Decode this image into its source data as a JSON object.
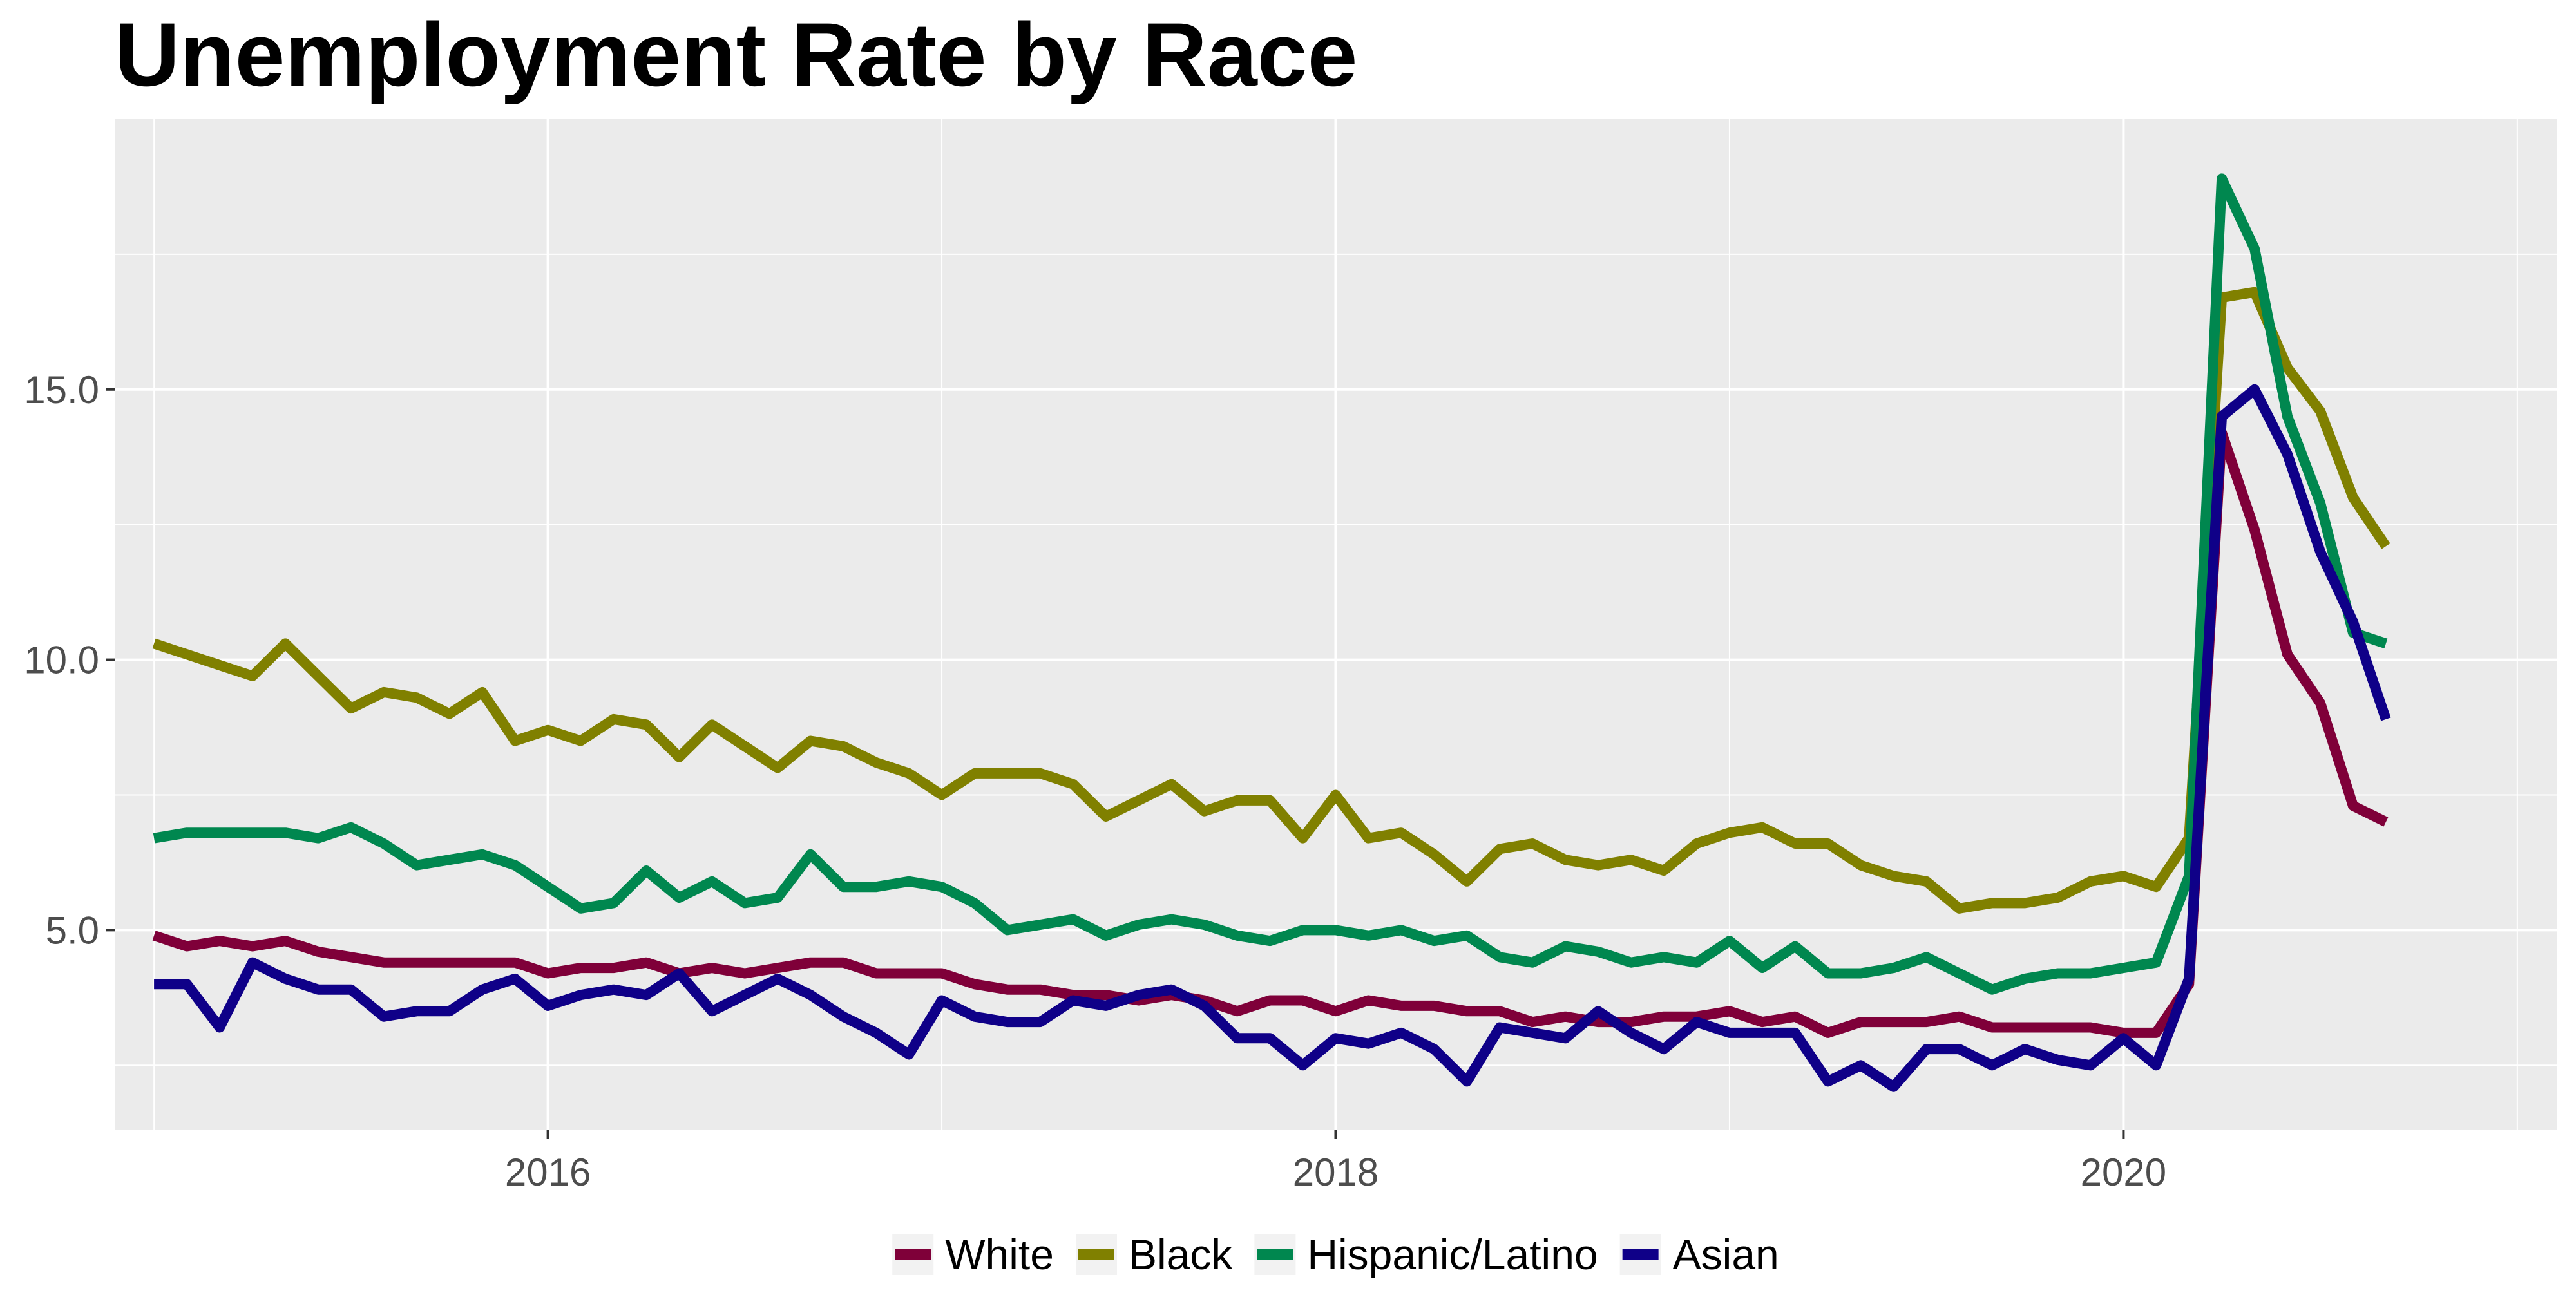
{
  "chart_data": {
    "type": "line",
    "title": "Unemployment Rate by Race",
    "xlabel": "",
    "ylabel": "",
    "xlim": [
      2014.9,
      2021.1
    ],
    "ylim": [
      1.3,
      20.0
    ],
    "x_ticks": [
      2016,
      2018,
      2020
    ],
    "x_tick_labels": [
      "2016",
      "2018",
      "2020"
    ],
    "y_ticks": [
      5.0,
      10.0,
      15.0
    ],
    "y_tick_labels": [
      "5.0",
      "10.0",
      "15.0"
    ],
    "grid": true,
    "legend_position": "bottom",
    "x_start": 2015.0,
    "x_step": 0.08333,
    "series": [
      {
        "name": "White",
        "color": "#7f0039",
        "values": [
          4.9,
          4.7,
          4.8,
          4.7,
          4.8,
          4.6,
          4.5,
          4.4,
          4.4,
          4.4,
          4.4,
          4.4,
          4.2,
          4.3,
          4.3,
          4.4,
          4.2,
          4.3,
          4.2,
          4.3,
          4.4,
          4.4,
          4.2,
          4.2,
          4.2,
          4.0,
          3.9,
          3.9,
          3.8,
          3.8,
          3.7,
          3.8,
          3.7,
          3.5,
          3.7,
          3.7,
          3.5,
          3.7,
          3.6,
          3.6,
          3.5,
          3.5,
          3.3,
          3.4,
          3.3,
          3.3,
          3.4,
          3.4,
          3.5,
          3.3,
          3.4,
          3.1,
          3.3,
          3.3,
          3.3,
          3.4,
          3.2,
          3.2,
          3.2,
          3.2,
          3.1,
          3.1,
          4.0,
          14.2,
          12.4,
          10.1,
          9.2,
          7.3,
          7.0
        ]
      },
      {
        "name": "Black",
        "color": "#808000",
        "values": [
          10.3,
          10.1,
          9.9,
          9.7,
          10.3,
          9.7,
          9.1,
          9.4,
          9.3,
          9.0,
          9.4,
          8.5,
          8.7,
          8.5,
          8.9,
          8.8,
          8.2,
          8.8,
          8.4,
          8.0,
          8.5,
          8.4,
          8.1,
          7.9,
          7.5,
          7.9,
          7.9,
          7.9,
          7.7,
          7.1,
          7.4,
          7.7,
          7.2,
          7.4,
          7.4,
          6.7,
          7.5,
          6.7,
          6.8,
          6.4,
          5.9,
          6.5,
          6.6,
          6.3,
          6.2,
          6.3,
          6.1,
          6.6,
          6.8,
          6.9,
          6.6,
          6.6,
          6.2,
          6.0,
          5.9,
          5.4,
          5.5,
          5.5,
          5.6,
          5.9,
          6.0,
          5.8,
          6.7,
          16.7,
          16.8,
          15.4,
          14.6,
          13.0,
          12.1
        ]
      },
      {
        "name": "Hispanic/Latino",
        "color": "#00874f",
        "values": [
          6.7,
          6.8,
          6.8,
          6.8,
          6.8,
          6.7,
          6.9,
          6.6,
          6.2,
          6.3,
          6.4,
          6.2,
          5.8,
          5.4,
          5.5,
          6.1,
          5.6,
          5.9,
          5.5,
          5.6,
          6.4,
          5.8,
          5.8,
          5.9,
          5.8,
          5.5,
          5.0,
          5.1,
          5.2,
          4.9,
          5.1,
          5.2,
          5.1,
          4.9,
          4.8,
          5.0,
          5.0,
          4.9,
          5.0,
          4.8,
          4.9,
          4.5,
          4.4,
          4.7,
          4.6,
          4.4,
          4.5,
          4.4,
          4.8,
          4.3,
          4.7,
          4.2,
          4.2,
          4.3,
          4.5,
          4.2,
          3.9,
          4.1,
          4.2,
          4.2,
          4.3,
          4.4,
          6.0,
          18.9,
          17.6,
          14.5,
          12.9,
          10.5,
          10.3
        ]
      },
      {
        "name": "Asian",
        "color": "#0f0088",
        "values": [
          4.0,
          4.0,
          3.2,
          4.4,
          4.1,
          3.9,
          3.9,
          3.4,
          3.5,
          3.5,
          3.9,
          4.1,
          3.6,
          3.8,
          3.9,
          3.8,
          4.2,
          3.5,
          3.8,
          4.1,
          3.8,
          3.4,
          3.1,
          2.7,
          3.7,
          3.4,
          3.3,
          3.3,
          3.7,
          3.6,
          3.8,
          3.9,
          3.6,
          3.0,
          3.0,
          2.5,
          3.0,
          2.9,
          3.1,
          2.8,
          2.2,
          3.2,
          3.1,
          3.0,
          3.5,
          3.1,
          2.8,
          3.3,
          3.1,
          3.1,
          3.1,
          2.2,
          2.5,
          2.1,
          2.8,
          2.8,
          2.5,
          2.8,
          2.6,
          2.5,
          3.0,
          2.5,
          4.1,
          14.5,
          15.0,
          13.8,
          12.0,
          10.7,
          8.9
        ]
      }
    ]
  }
}
